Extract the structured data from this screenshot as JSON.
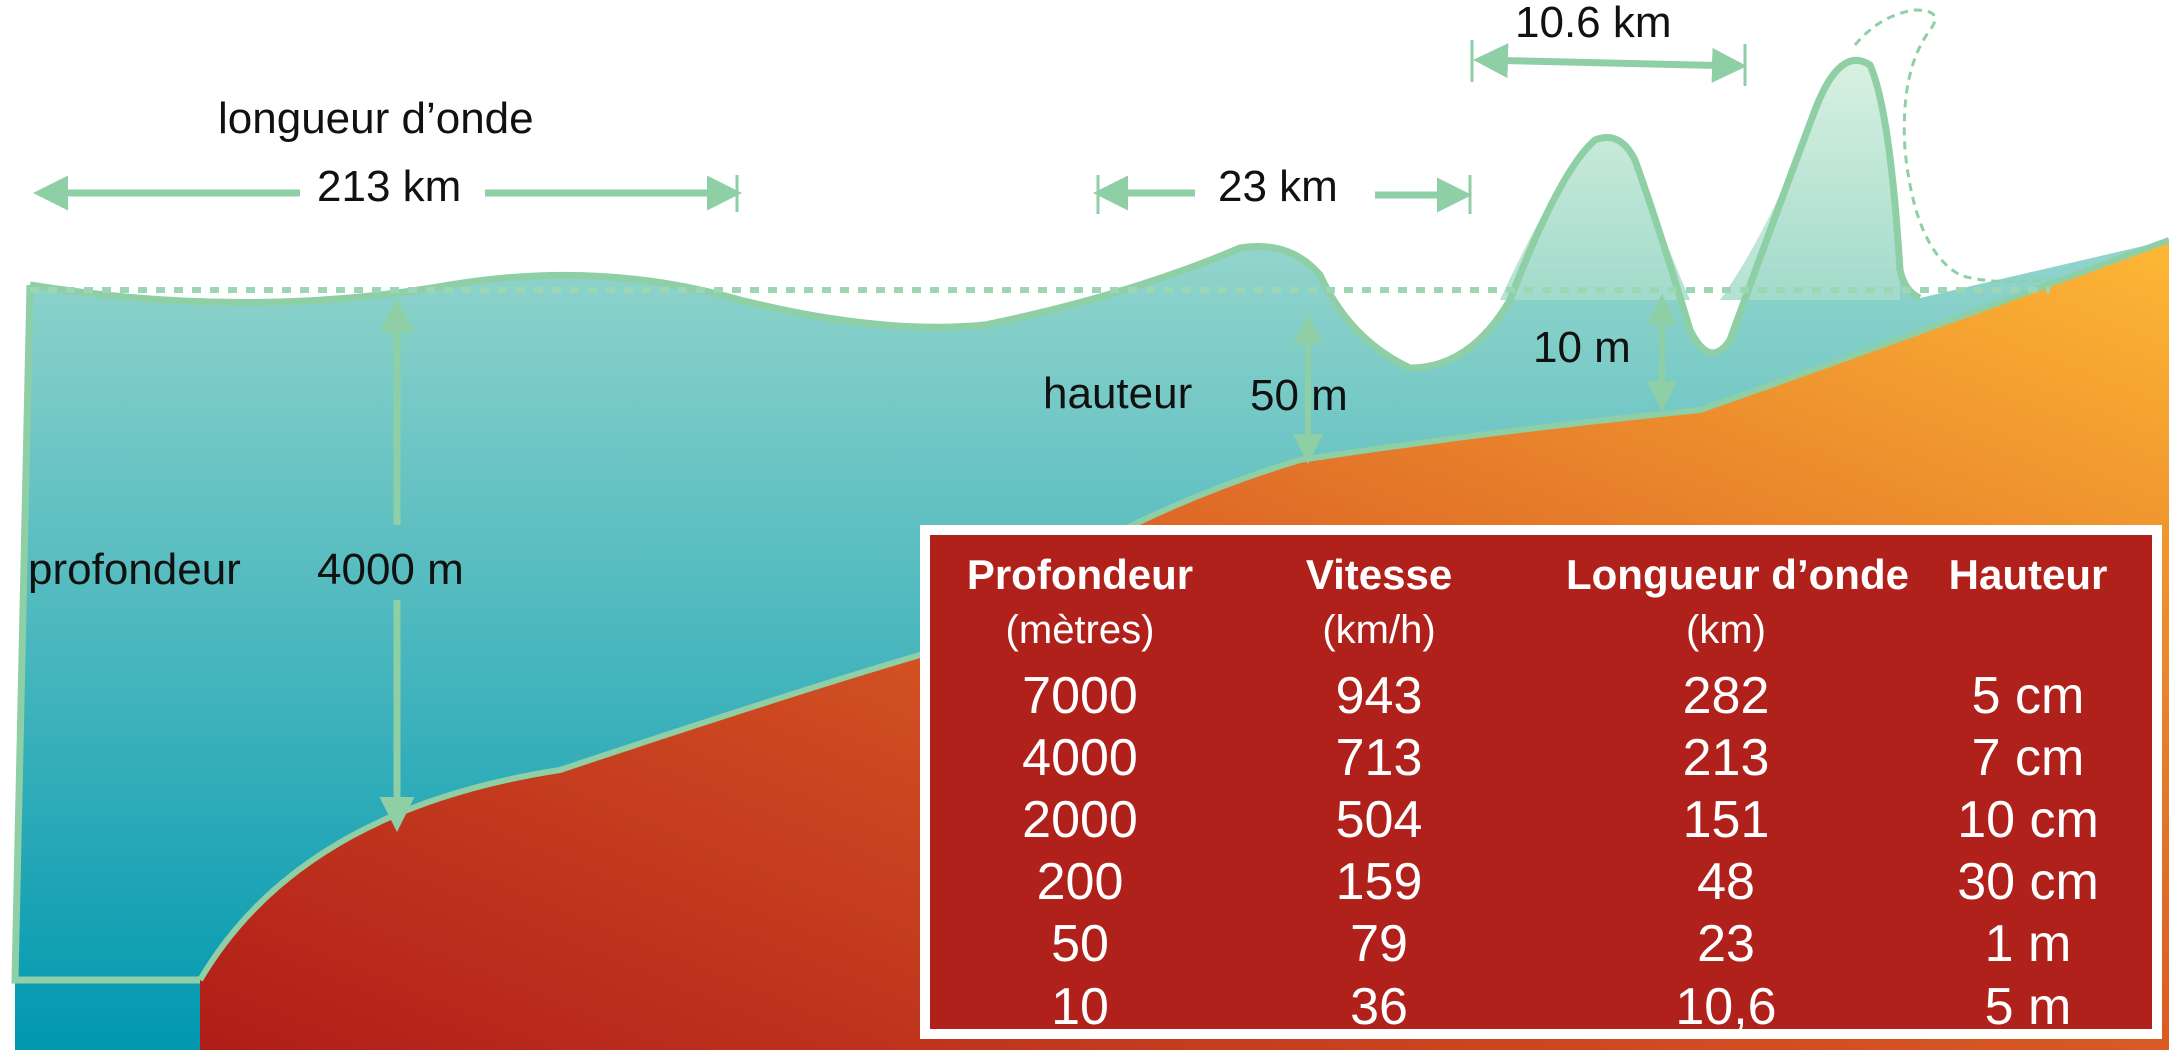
{
  "labels": {
    "wavelength_title": "longueur d’onde",
    "wl_213": "213 km",
    "wl_23": "23 km",
    "wl_10_6": "10.6 km",
    "depth_title": "profondeur",
    "depth_4000": "4000 m",
    "height_title": "hauteur",
    "height_50": "50 m",
    "height_10": "10 m"
  },
  "colors": {
    "water_top": "#a4dcc8",
    "water_bottom": "#0098b0",
    "seafloor_light": "#fbb535",
    "seafloor_dark": "#b21e1a",
    "outline": "#8fcfa5",
    "table_bg": "#b0211b"
  },
  "table": {
    "headers": [
      "Profondeur",
      "Vitesse",
      "Longueur d’onde",
      "Hauteur"
    ],
    "units": [
      "(mètres)",
      "(km/h)",
      "(km)",
      ""
    ],
    "rows": [
      [
        "7000",
        "943",
        "282",
        "5 cm"
      ],
      [
        "4000",
        "713",
        "213",
        "7 cm"
      ],
      [
        "2000",
        "504",
        "151",
        "10 cm"
      ],
      [
        "200",
        "159",
        "48",
        "30 cm"
      ],
      [
        "50",
        "79",
        "23",
        "1 m"
      ],
      [
        "10",
        "36",
        "10,6",
        "5 m"
      ]
    ]
  }
}
